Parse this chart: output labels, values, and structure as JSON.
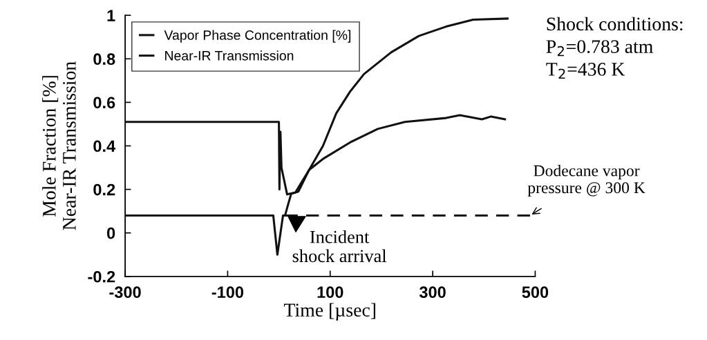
{
  "chart_data": {
    "type": "line",
    "xlabel": "Time [µsec]",
    "ylabel": "Mole Fraction [%]\nNear-IR Transmission",
    "xlim": [
      -300,
      500
    ],
    "xticks": [
      -300,
      -100,
      100,
      300,
      500
    ],
    "ylim": [
      -0.2,
      1
    ],
    "yticks": [
      -0.2,
      0,
      0.2,
      0.4,
      0.6,
      0.8,
      1
    ],
    "grid": false,
    "legend": "top left",
    "line_style": "solid",
    "marker": "none",
    "series": [
      {
        "name": "Vapor Phase Concentration [%]",
        "color": "#111111",
        "x": [
          -300,
          -200,
          -100,
          -11,
          -3,
          8,
          12,
          19,
          24,
          38,
          59,
          86,
          112,
          139,
          166,
          219,
          273,
          326,
          379,
          446
        ],
        "values": [
          0.08,
          0.08,
          0.08,
          0.08,
          -0.1,
          0.08,
          0.08,
          0.14,
          0.18,
          0.19,
          0.29,
          0.4,
          0.55,
          0.65,
          0.73,
          0.83,
          0.905,
          0.948,
          0.98,
          0.985
        ]
      },
      {
        "name": "Near-IR Transmission",
        "color": "#111111",
        "x": [
          -300,
          -100,
          0,
          1,
          3,
          5,
          16,
          32,
          59,
          86,
          139,
          193,
          246,
          326,
          353,
          396,
          414,
          441
        ],
        "values": [
          0.51,
          0.51,
          0.51,
          0.2,
          0.465,
          0.3,
          0.177,
          0.185,
          0.29,
          0.34,
          0.416,
          0.478,
          0.51,
          0.528,
          0.541,
          0.522,
          0.535,
          0.522
        ]
      },
      {
        "color": "#111111",
        "line_style": "dashed",
        "x": [
          12,
          500
        ],
        "values": [
          0.08,
          0.08
        ]
      }
    ],
    "annotations": [
      {
        "text": "Incident\nshock arrival",
        "x": 15,
        "y": 0.08
      },
      {
        "text": "Dodecane vapor\npressure @ 300 K",
        "x": 490,
        "y": 0.08
      },
      "Shock conditions:\nP$_{2}$=0.783 atm\nT$_{2}$=436 K"
    ]
  }
}
